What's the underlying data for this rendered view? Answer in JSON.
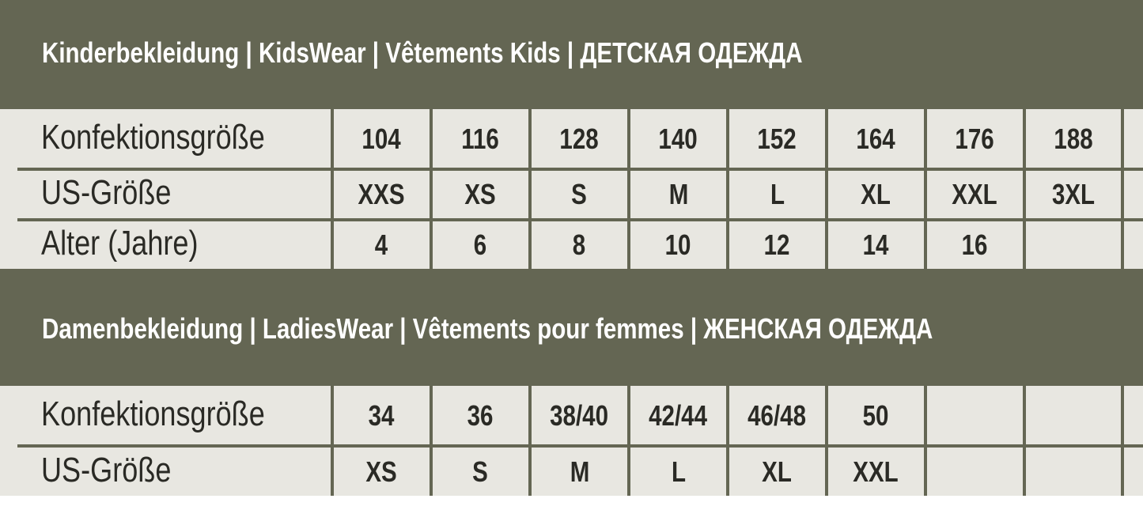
{
  "colors": {
    "band": "#646653",
    "cell": "#e8e7e1",
    "text": "#2a2a25",
    "title": "#ffffff"
  },
  "kids": {
    "title": "Kinderbekleidung | KidsWear | Vêtements Kids | ДЕТСКАЯ ОДЕЖДА",
    "rows": [
      {
        "label": "Konfektionsgröße",
        "values": [
          "104",
          "116",
          "128",
          "140",
          "152",
          "164",
          "176",
          "188",
          ""
        ]
      },
      {
        "label": "US-Größe",
        "values": [
          "XXS",
          "XS",
          "S",
          "M",
          "L",
          "XL",
          "XXL",
          "3XL",
          ""
        ]
      },
      {
        "label": "Alter (Jahre)",
        "values": [
          "4",
          "6",
          "8",
          "10",
          "12",
          "14",
          "16",
          "",
          ""
        ]
      }
    ]
  },
  "ladies": {
    "title": "Damenbekleidung | LadiesWear | Vêtements pour femmes | ЖЕНСКАЯ ОДЕЖДА",
    "rows": [
      {
        "label": "Konfektionsgröße",
        "values": [
          "34",
          "36",
          "38/40",
          "42/44",
          "46/48",
          "50",
          "",
          "",
          ""
        ]
      },
      {
        "label": "US-Größe",
        "values": [
          "XS",
          "S",
          "M",
          "L",
          "XL",
          "XXL",
          "",
          "",
          ""
        ]
      }
    ]
  }
}
